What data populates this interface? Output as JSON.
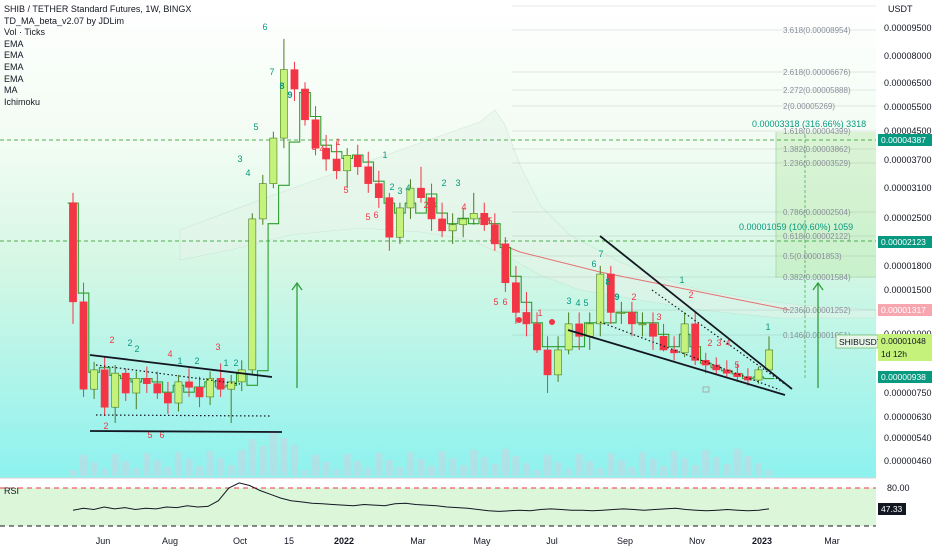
{
  "legend": {
    "title": "SHIB / TETHER Standard Futures, 1W, BINGX",
    "indicators": [
      "TD_MA_beta_v2.07 by JDLim",
      "Vol · Ticks",
      "EMA",
      "EMA",
      "EMA",
      "EMA",
      "MA",
      "Ichimoku"
    ]
  },
  "rsi": {
    "label": "RSI",
    "upper_level": "80.00",
    "current_value": "47.33",
    "upper": 80,
    "lower": 20,
    "points": [
      45,
      48,
      46,
      50,
      47,
      49,
      46,
      48,
      47,
      50,
      49,
      52,
      50,
      51,
      60,
      80,
      88,
      84,
      76,
      70,
      64,
      60,
      58,
      56,
      55,
      54,
      53,
      52,
      54,
      53,
      52,
      55,
      56,
      54,
      53,
      52,
      50,
      49,
      48,
      46,
      44,
      43,
      44,
      45,
      44,
      46,
      47,
      46,
      45,
      45,
      44,
      45,
      46,
      47,
      46,
      45,
      46,
      47,
      48,
      46,
      45,
      44,
      45,
      46,
      45,
      44,
      45,
      47
    ]
  },
  "yaxis": {
    "unit_label": "USDT",
    "ticks": [
      "0.00009500",
      "0.00008000",
      "0.00006500",
      "0.00005500",
      "0.00004500",
      "0.00003700",
      "0.00003100",
      "0.00002500",
      "0.00002100",
      "0.00001800",
      "0.00001500",
      "0.00001250",
      "0.00001000",
      "0.00000750",
      "0.00000630",
      "0.00000540",
      "0.00000460"
    ]
  },
  "xaxis": {
    "ticks": [
      "Jun",
      "Aug",
      "Oct",
      "15",
      "2022",
      "Mar",
      "May",
      "Jul",
      "Sep",
      "Nov",
      "2023",
      "Mar"
    ]
  },
  "price_labels": {
    "level_top": "0.00004387",
    "level_mid": "0.00002123",
    "ma_value": "0.00001317",
    "symbol": "SHIBUSDT",
    "last_price": "0.00001048",
    "countdown": "1d 12h",
    "ema_value": "0.00000938"
  },
  "fib_levels": [
    {
      "ratio": "3.618",
      "price": "(0.00008954)"
    },
    {
      "ratio": "2.618",
      "price": "(0.00006676)"
    },
    {
      "ratio": "2.272",
      "price": "(0.00005888)"
    },
    {
      "ratio": "2",
      "price": "(0.00005269)"
    },
    {
      "ratio": "1.618",
      "price": "(0.00004399)"
    },
    {
      "ratio": "1.382",
      "price": "(0.00003862)"
    },
    {
      "ratio": "1.236",
      "price": "(0.00003529)"
    },
    {
      "ratio": "0.786",
      "price": "(0.00002504)"
    },
    {
      "ratio": "0.618",
      "price": "(0.00002122)"
    },
    {
      "ratio": "0.5",
      "price": "(0.00001853)"
    },
    {
      "ratio": "0.382",
      "price": "(0.00001584)"
    },
    {
      "ratio": "0.236",
      "price": "(0.00001252)"
    },
    {
      "ratio": "0.146",
      "price": "(0.00001051)"
    }
  ],
  "projections": [
    "0.00003318 (316.66%) 3318",
    "0.00001059 (100.60%) 1059"
  ],
  "colors": {
    "bull": "#c4f27a",
    "bull_border": "#4a7d1e",
    "bear": "#f23645",
    "td_bull": "#089981",
    "td_bear": "#f23645",
    "td_green_count": "#4caf50",
    "signal_line": "#2ca02c",
    "ma_line": "#e57373",
    "fib_line": "#787b86",
    "level_line": "#4caf50",
    "rsi_line": "#131722"
  },
  "chart_data": {
    "type": "candlestick",
    "symbol": "SHIB / TETHER Standard Futures",
    "interval": "1W",
    "exchange": "BINGX",
    "y_scale": "log",
    "ylim": [
      4.2e-06,
      0.000125
    ],
    "candles": [
      [
        2.8e-05,
        3e-05,
        1.2e-05,
        1.4e-05
      ],
      [
        1.4e-05,
        1.6e-05,
        7.2e-06,
        7.6e-06
      ],
      [
        7.6e-06,
        9.2e-06,
        7.1e-06,
        8.7e-06
      ],
      [
        8.7e-06,
        9.5e-06,
        6.3e-06,
        6.7e-06
      ],
      [
        6.7e-06,
        9e-06,
        6e-06,
        8.5e-06
      ],
      [
        8.5e-06,
        8.8e-06,
        7e-06,
        7.4e-06
      ],
      [
        7.4e-06,
        8.6e-06,
        6.6e-06,
        8.2e-06
      ],
      [
        8.2e-06,
        8.9e-06,
        7.4e-06,
        7.9e-06
      ],
      [
        7.9e-06,
        8.6e-06,
        7.1e-06,
        7.4e-06
      ],
      [
        7.4e-06,
        8e-06,
        6.4e-06,
        6.9e-06
      ],
      [
        6.9e-06,
        8.4e-06,
        6.5e-06,
        8e-06
      ],
      [
        8e-06,
        8.8e-06,
        7.2e-06,
        7.7e-06
      ],
      [
        7.7e-06,
        8.3e-06,
        6.7e-06,
        7.2e-06
      ],
      [
        7.2e-06,
        8.6e-06,
        6.8e-06,
        8.2e-06
      ],
      [
        8.2e-06,
        9.1e-06,
        7.2e-06,
        7.6e-06
      ],
      [
        7.6e-06,
        8.4e-06,
        6e-06,
        8e-06
      ],
      [
        8e-06,
        9.3e-06,
        7.5e-06,
        8.7e-06
      ],
      [
        8.7e-06,
        2.6e-05,
        8.4e-06,
        2.5e-05
      ],
      [
        2.5e-05,
        3.4e-05,
        2.4e-05,
        3.2e-05
      ],
      [
        3.2e-05,
        4.6e-05,
        3.1e-05,
        4.4e-05
      ],
      [
        4.4e-05,
        8.8e-05,
        4.1e-05,
        7.1e-05
      ],
      [
        7.1e-05,
        7.5e-05,
        5.7e-05,
        6.2e-05
      ],
      [
        6.2e-05,
        6.5e-05,
        4.8e-05,
        5e-05
      ],
      [
        5e-05,
        5.5e-05,
        3.9e-05,
        4.1e-05
      ],
      [
        4.1e-05,
        4.5e-05,
        3.5e-05,
        3.8e-05
      ],
      [
        3.8e-05,
        4.3e-05,
        3.3e-05,
        3.5e-05
      ],
      [
        3.5e-05,
        4.1e-05,
        3.1e-05,
        3.9e-05
      ],
      [
        3.9e-05,
        4.2e-05,
        3.4e-05,
        3.6e-05
      ],
      [
        3.6e-05,
        4e-05,
        3e-05,
        3.2e-05
      ],
      [
        3.2e-05,
        3.5e-05,
        2.7e-05,
        2.9e-05
      ],
      [
        2.9e-05,
        3e-05,
        2e-05,
        2.2e-05
      ],
      [
        2.2e-05,
        2.8e-05,
        2.1e-05,
        2.7e-05
      ],
      [
        2.7e-05,
        3.3e-05,
        2.5e-05,
        3.1e-05
      ],
      [
        3.1e-05,
        3.6e-05,
        2.8e-05,
        2.9e-05
      ],
      [
        2.9e-05,
        3.2e-05,
        2.3e-05,
        2.5e-05
      ],
      [
        2.5e-05,
        2.8e-05,
        2.2e-05,
        2.3e-05
      ],
      [
        2.3e-05,
        2.6e-05,
        2.1e-05,
        2.4e-05
      ],
      [
        2.4e-05,
        2.7e-05,
        2.2e-05,
        2.5e-05
      ],
      [
        2.5e-05,
        3e-05,
        2.4e-05,
        2.6e-05
      ],
      [
        2.6e-05,
        2.8e-05,
        2.3e-05,
        2.4e-05
      ],
      [
        2.4e-05,
        2.6e-05,
        2e-05,
        2.1e-05
      ],
      [
        2.1e-05,
        2.2e-05,
        1.5e-05,
        1.6e-05
      ],
      [
        1.6e-05,
        1.8e-05,
        1.2e-05,
        1.3e-05
      ],
      [
        1.3e-05,
        1.5e-05,
        1.1e-05,
        1.2e-05
      ],
      [
        1.2e-05,
        1.3e-05,
        9.8e-06,
        1e-05
      ],
      [
        1e-05,
        1.1e-05,
        7.4e-06,
        8.4e-06
      ],
      [
        8.4e-06,
        1.1e-05,
        8e-06,
        1e-05
      ],
      [
        1e-05,
        1.3e-05,
        9.7e-06,
        1.2e-05
      ],
      [
        1.2e-05,
        1.3e-05,
        1e-05,
        1.1e-05
      ],
      [
        1.1e-05,
        1.3e-05,
        1e-05,
        1.2e-05
      ],
      [
        1.2e-05,
        1.8e-05,
        1.1e-05,
        1.7e-05
      ],
      [
        1.7e-05,
        1.8e-05,
        1.2e-05,
        1.3e-05
      ],
      [
        1.3e-05,
        1.4e-05,
        1.2e-05,
        1.3e-05
      ],
      [
        1.3e-05,
        1.4e-05,
        1.1e-05,
        1.2e-05
      ],
      [
        1.2e-05,
        1.3e-05,
        1.1e-05,
        1.2e-05
      ],
      [
        1.2e-05,
        1.3e-05,
        1e-05,
        1.1e-05
      ],
      [
        1.1e-05,
        1.2e-05,
        9.9e-06,
        1e-05
      ],
      [
        1e-05,
        1.1e-05,
        9.3e-06,
        9.8e-06
      ],
      [
        9.8e-06,
        1.3e-05,
        9.5e-06,
        1.2e-05
      ],
      [
        1.2e-05,
        1.3e-05,
        9e-06,
        9.3e-06
      ],
      [
        9.3e-06,
        9.8e-06,
        8.5e-06,
        9e-06
      ],
      [
        9e-06,
        9.5e-06,
        8.4e-06,
        8.7e-06
      ],
      [
        8.7e-06,
        9.3e-06,
        8.3e-06,
        8.5e-06
      ],
      [
        8.5e-06,
        9.1e-06,
        8e-06,
        8.3e-06
      ],
      [
        8.3e-06,
        8.8e-06,
        7.8e-06,
        8.1e-06
      ],
      [
        8.1e-06,
        8.9e-06,
        7.9e-06,
        8.7e-06
      ],
      [
        8.7e-06,
        1.1e-05,
        8.6e-06,
        1e-05
      ]
    ]
  }
}
